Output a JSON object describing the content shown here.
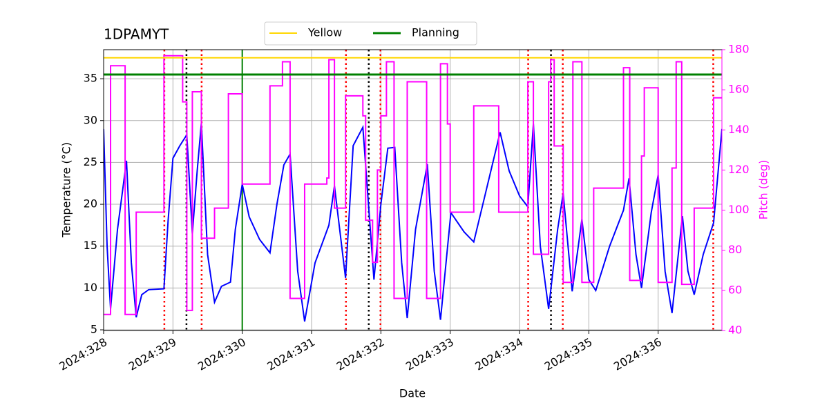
{
  "chart_data": {
    "type": "line",
    "title": "1DPAMYT",
    "xlabel": "Date",
    "ylabel": "Temperature ($^\\circ$C)",
    "ylabel_display": "Temperature (°C)",
    "y2label": "Pitch (deg)",
    "y2color": "#ff00ff",
    "grid": true,
    "legend": "upper center",
    "xlim": [
      328,
      336.92
    ],
    "xticks": [
      {
        "value": 328,
        "label": "2024:328"
      },
      {
        "value": 329,
        "label": "2024:329"
      },
      {
        "value": 330,
        "label": "2024:330"
      },
      {
        "value": 331,
        "label": "2024:331"
      },
      {
        "value": 332,
        "label": "2024:332"
      },
      {
        "value": 333,
        "label": "2024:333"
      },
      {
        "value": 334,
        "label": "2024:334"
      },
      {
        "value": 335,
        "label": "2024:335"
      },
      {
        "value": 336,
        "label": "2024:336"
      }
    ],
    "ylim": [
      4.92,
      38.47
    ],
    "yticks": [
      5,
      10,
      15,
      20,
      25,
      30,
      35
    ],
    "y2lim": [
      40,
      180
    ],
    "y2ticks": [
      40,
      60,
      80,
      100,
      120,
      140,
      160,
      180
    ],
    "series": [
      {
        "color": "#0000ff",
        "axis": "y",
        "x": [
          328.0,
          328.05,
          328.1,
          328.2,
          328.33,
          328.4,
          328.47,
          328.55,
          328.65,
          328.87,
          328.93,
          329.0,
          329.1,
          329.2,
          329.28,
          329.35,
          329.41,
          329.5,
          329.6,
          329.7,
          329.83,
          329.9,
          330.0,
          330.1,
          330.25,
          330.4,
          330.5,
          330.6,
          330.69,
          330.8,
          330.9,
          331.05,
          331.25,
          331.33,
          331.49,
          331.6,
          331.74,
          331.9,
          332.0,
          332.1,
          332.2,
          332.3,
          332.38,
          332.5,
          332.67,
          332.77,
          332.86,
          333.01,
          333.2,
          333.34,
          333.5,
          333.72,
          333.85,
          334.0,
          334.12,
          334.2,
          334.3,
          334.42,
          334.55,
          334.63,
          334.76,
          334.9,
          335.0,
          335.1,
          335.3,
          335.5,
          335.58,
          335.68,
          335.76,
          335.9,
          336.0,
          336.1,
          336.2,
          336.35,
          336.43,
          336.52,
          336.65,
          336.8,
          336.92
        ],
        "values": [
          29,
          15,
          7.5,
          17,
          25.2,
          13,
          6.5,
          9.2,
          9.8,
          9.9,
          18,
          25.5,
          27,
          28.3,
          16.5,
          24,
          29.7,
          14,
          8.3,
          10.2,
          10.7,
          17,
          22.4,
          18.5,
          15.8,
          14.2,
          20,
          24.7,
          26,
          12,
          6,
          13,
          17.5,
          22.2,
          11.2,
          27,
          29.2,
          11,
          20,
          26.7,
          26.8,
          13,
          6.4,
          17,
          24.8,
          12,
          6.2,
          19,
          16.7,
          15.5,
          21,
          28.6,
          24,
          21,
          19.7,
          29.6,
          15,
          7.5,
          17,
          21.3,
          9.6,
          18.2,
          11,
          9.7,
          15,
          19.3,
          23.1,
          14,
          10,
          19,
          23.5,
          12,
          7,
          18.6,
          12,
          9.2,
          14,
          17.8,
          29
        ]
      },
      {
        "color": "#ff00ff",
        "axis": "y2",
        "drawstyle": "steps-post",
        "x": [
          328.0,
          328.1,
          328.31,
          328.47,
          328.87,
          329.14,
          329.2,
          329.28,
          329.41,
          329.6,
          329.8,
          330.0,
          330.4,
          330.58,
          330.69,
          330.9,
          331.22,
          331.25,
          331.33,
          331.49,
          331.74,
          331.78,
          331.88,
          331.95,
          332.0,
          332.08,
          332.19,
          332.38,
          332.66,
          332.86,
          332.96,
          333.0,
          333.34,
          333.7,
          334.12,
          334.2,
          334.42,
          334.45,
          334.5,
          334.63,
          334.77,
          334.9,
          335.07,
          335.5,
          335.59,
          335.76,
          335.8,
          336.0,
          336.2,
          336.26,
          336.34,
          336.52,
          336.8,
          336.92
        ],
        "values": [
          48,
          172,
          48,
          99,
          177,
          154,
          50,
          159,
          86,
          101,
          158,
          113,
          162,
          174,
          56,
          113,
          116,
          175,
          101,
          157,
          147,
          95,
          74,
          120,
          147,
          174,
          56,
          164,
          56,
          173,
          143,
          99,
          152,
          99,
          164,
          78,
          164,
          175,
          132,
          64,
          174,
          64,
          111,
          171,
          65,
          127,
          161,
          64,
          121,
          174,
          63,
          101,
          156,
          156
        ]
      }
    ],
    "hlines": [
      {
        "name": "Yellow",
        "value": 37.5,
        "color": "#ffd700"
      },
      {
        "name": "Planning",
        "value": 35.5,
        "color": "#008000"
      }
    ],
    "vlines": [
      {
        "x": 330,
        "color": "#008000",
        "style": "solid"
      },
      {
        "x": 328.876,
        "color": "#ff0000",
        "style": "dotted"
      },
      {
        "x": 329.414,
        "color": "#ff0000",
        "style": "dotted"
      },
      {
        "x": 331.496,
        "color": "#ff0000",
        "style": "dotted"
      },
      {
        "x": 331.994,
        "color": "#ff0000",
        "style": "dotted"
      },
      {
        "x": 334.125,
        "color": "#ff0000",
        "style": "dotted"
      },
      {
        "x": 334.624,
        "color": "#ff0000",
        "style": "dotted"
      },
      {
        "x": 336.795,
        "color": "#ff0000",
        "style": "dotted"
      },
      {
        "x": 329.195,
        "color": "#000000",
        "style": "dotted"
      },
      {
        "x": 331.825,
        "color": "#000000",
        "style": "dotted"
      },
      {
        "x": 334.454,
        "color": "#000000",
        "style": "dotted"
      }
    ]
  }
}
